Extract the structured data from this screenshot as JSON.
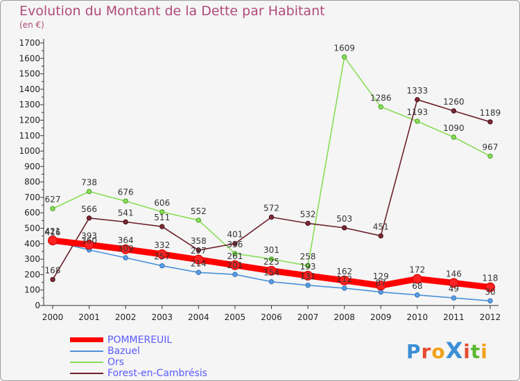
{
  "title": "Evolution du Montant de la Dette par Habitant",
  "subtitle": "(en €)",
  "logo": {
    "text": "ProXiti",
    "letters": [
      "P",
      "r",
      "o",
      "X",
      "i",
      "t",
      "i"
    ],
    "colors": [
      "#3a8fd6",
      "#e64a2e",
      "#f2a21a",
      "#3a8fd6",
      "#e64a2e",
      "#5ab82e",
      "#f2a21a"
    ]
  },
  "colors": {
    "POMMEREUIL": "#ff0000",
    "Bazuel": "#4a90d9",
    "Ors": "#88dd55",
    "Forest-en-Cambrésis": "#6b1f2a"
  },
  "chart_data": {
    "type": "line",
    "title": "Evolution du Montant de la Dette par Habitant",
    "subtitle": "(en €)",
    "x": [
      "2000",
      "2001",
      "2002",
      "2003",
      "2004",
      "2005",
      "2006",
      "2007",
      "2008",
      "2009",
      "2010",
      "2011",
      "2012"
    ],
    "y_ticks": [
      "0",
      "100",
      "200",
      "300",
      "400",
      "500",
      "600",
      "700",
      "800",
      "900",
      "1000",
      "1100",
      "1200",
      "1300",
      "1400",
      "1500",
      "1600",
      "1700"
    ],
    "ylim": [
      0,
      1700
    ],
    "grid": false,
    "legend_position": "bottom-left",
    "series": [
      {
        "name": "POMMEREUIL",
        "values": [
          421,
          393,
          364,
          332,
          297,
          261,
          225,
          193,
          162,
          129,
          172,
          146,
          118
        ],
        "labels": [
          "421",
          "393",
          "364",
          "332",
          "297",
          "261",
          "225",
          "193",
          "162",
          "129",
          "172",
          "146",
          "118"
        ]
      },
      {
        "name": "Bazuel",
        "values": [
          416,
          360,
          309,
          257,
          214,
          201,
          154,
          131,
          112,
          87,
          68,
          49,
          30
        ],
        "labels": [
          "416",
          "360",
          "309",
          "257",
          "214",
          "201",
          "154",
          "131",
          "112",
          "87",
          "68",
          "49",
          "30"
        ]
      },
      {
        "name": "Ors",
        "values": [
          627,
          738,
          676,
          606,
          552,
          336,
          301,
          258,
          1609,
          1286,
          1193,
          1090,
          967
        ],
        "labels": [
          "627",
          "738",
          "676",
          "606",
          "552",
          "336",
          "301",
          "258",
          "1609",
          "1286",
          "1193",
          "1090",
          "967"
        ]
      },
      {
        "name": "Forest-en-Cambrésis",
        "values": [
          168,
          566,
          541,
          511,
          358,
          401,
          572,
          532,
          503,
          451,
          1333,
          1260,
          1189
        ],
        "labels": [
          "168",
          "566",
          "541",
          "511",
          "358",
          "401",
          "572",
          "532",
          "503",
          "451",
          "1333",
          "1260",
          "1189"
        ]
      }
    ]
  }
}
